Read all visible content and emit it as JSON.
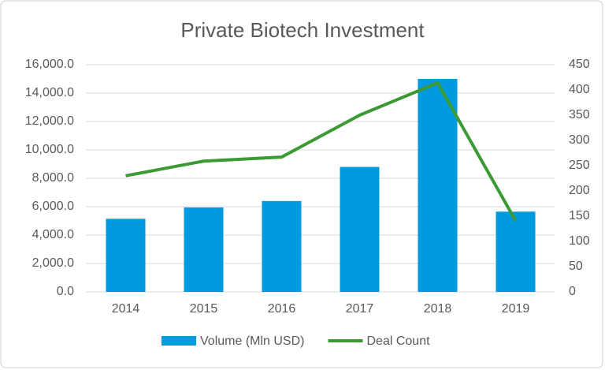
{
  "chart_data": {
    "type": "bar",
    "title": "Private Biotech Investment",
    "categories": [
      "2014",
      "2015",
      "2016",
      "2017",
      "2018",
      "2019"
    ],
    "series": [
      {
        "name": "Volume (Mln USD)",
        "type": "bar",
        "color": "#009ADE",
        "values": [
          5150,
          5950,
          6400,
          8800,
          15000,
          5650
        ]
      },
      {
        "name": "Deal Count",
        "type": "line",
        "axis": "y2",
        "color": "#3C9A35",
        "values": [
          230,
          259,
          267,
          350,
          414,
          141
        ]
      }
    ],
    "ylim": [
      0,
      16000
    ],
    "yticks": [
      {
        "value": 0,
        "label": "0.0"
      },
      {
        "value": 2000,
        "label": "2,000.0"
      },
      {
        "value": 4000,
        "label": "4,000.0"
      },
      {
        "value": 6000,
        "label": "6,000.0"
      },
      {
        "value": 8000,
        "label": "8,000.0"
      },
      {
        "value": 10000,
        "label": "10,000.0"
      },
      {
        "value": 12000,
        "label": "12,000.0"
      },
      {
        "value": 14000,
        "label": "14,000.0"
      },
      {
        "value": 16000,
        "label": "16,000.0"
      }
    ],
    "y2lim": [
      0,
      450
    ],
    "y2ticks": [
      0,
      50,
      100,
      150,
      200,
      250,
      300,
      350,
      400,
      450
    ],
    "grid": true,
    "legend": "bottom"
  }
}
